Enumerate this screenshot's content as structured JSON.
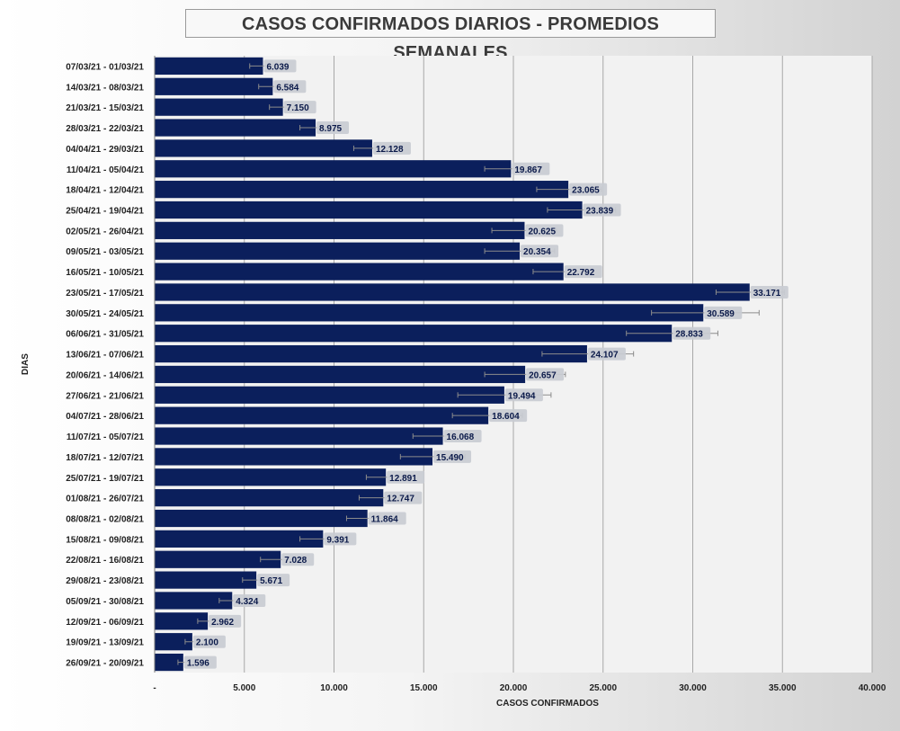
{
  "chart_data": {
    "type": "bar",
    "orientation": "horizontal",
    "title": "CASOS CONFIRMADOS DIARIOS - PROMEDIOS SEMANALES",
    "xlabel": "CASOS CONFIRMADOS",
    "ylabel": "DIAS",
    "xlim": [
      0,
      40000
    ],
    "xticks": [
      0,
      5000,
      10000,
      15000,
      20000,
      25000,
      30000,
      35000,
      40000
    ],
    "xtick_labels": [
      "-",
      "5.000",
      "10.000",
      "15.000",
      "20.000",
      "25.000",
      "30.000",
      "35.000",
      "40.000"
    ],
    "grid": true,
    "error_bars": true,
    "bar_color": "#0b1f5c",
    "categories": [
      "07/03/21 - 01/03/21",
      "14/03/21 - 08/03/21",
      "21/03/21 - 15/03/21",
      "28/03/21 - 22/03/21",
      "04/04/21 - 29/03/21",
      "11/04/21 - 05/04/21",
      "18/04/21 - 12/04/21",
      "25/04/21 - 19/04/21",
      "02/05/21 - 26/04/21",
      "09/05/21 - 03/05/21",
      "16/05/21 - 10/05/21",
      "23/05/21 - 17/05/21",
      "30/05/21 - 24/05/21",
      "06/06/21 - 31/05/21",
      "13/06/21 - 07/06/21",
      "20/06/21 - 14/06/21",
      "27/06/21 - 21/06/21",
      "04/07/21 - 28/06/21",
      "11/07/21 - 05/07/21",
      "18/07/21 - 12/07/21",
      "25/07/21 - 19/07/21",
      "01/08/21 - 26/07/21",
      "08/08/21 - 02/08/21",
      "15/08/21 - 09/08/21",
      "22/08/21 - 16/08/21",
      "29/08/21 - 23/08/21",
      "05/09/21 - 30/08/21",
      "12/09/21 - 06/09/21",
      "19/09/21 - 13/09/21",
      "26/09/21 - 20/09/21"
    ],
    "values": [
      6039,
      6584,
      7150,
      8975,
      12128,
      19867,
      23065,
      23839,
      20625,
      20354,
      22792,
      33171,
      30589,
      28833,
      24107,
      20657,
      19494,
      18604,
      16068,
      15490,
      12891,
      12747,
      11864,
      9391,
      7028,
      5671,
      4324,
      2962,
      2100,
      1596
    ],
    "value_labels": [
      "6.039",
      "6.584",
      "7.150",
      "8.975",
      "12.128",
      "19.867",
      "23.065",
      "23.839",
      "20.625",
      "20.354",
      "22.792",
      "33.171",
      "30.589",
      "28.833",
      "24.107",
      "20.657",
      "19.494",
      "18.604",
      "16.068",
      "15.490",
      "12.891",
      "12.747",
      "11.864",
      "9.391",
      "7.028",
      "5.671",
      "4.324",
      "2.962",
      "2.100",
      "1.596"
    ],
    "error_low": [
      5300,
      5800,
      6400,
      8100,
      11100,
      18400,
      21300,
      21900,
      18800,
      18400,
      21100,
      31300,
      27700,
      26300,
      21600,
      18400,
      16900,
      16600,
      14400,
      13700,
      11800,
      11400,
      10700,
      8100,
      5900,
      4900,
      3600,
      2400,
      1700,
      1300
    ],
    "error_high": [
      6700,
      7400,
      7900,
      9800,
      13100,
      21200,
      24900,
      25700,
      22400,
      22300,
      24400,
      35100,
      33700,
      31400,
      26700,
      22900,
      22100,
      20500,
      17700,
      17300,
      14000,
      14100,
      13000,
      10700,
      8100,
      6400,
      5000,
      3500,
      2500,
      1900
    ]
  }
}
